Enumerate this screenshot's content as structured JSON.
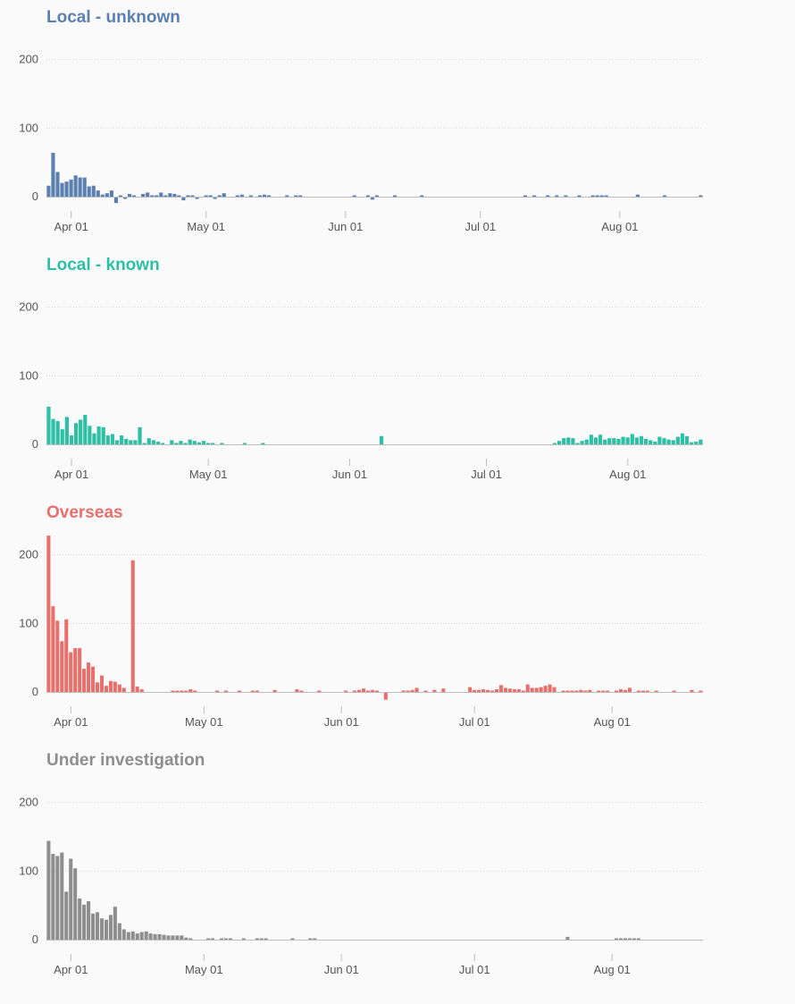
{
  "chart_data": [
    {
      "type": "bar",
      "title": "Local - unknown",
      "color": "#5b80b0",
      "x_start": "2020-03-27",
      "x_end": "2020-08-15",
      "ylim": [
        -10,
        200
      ],
      "yticks": [
        0,
        100,
        200
      ],
      "xticks": [
        {
          "date": "2020-04-01",
          "label": "Apr 01"
        },
        {
          "date": "2020-05-01",
          "label": "May 01"
        },
        {
          "date": "2020-06-01",
          "label": "Jun 01"
        },
        {
          "date": "2020-07-01",
          "label": "Jul 01"
        },
        {
          "date": "2020-08-01",
          "label": "Aug 01"
        }
      ],
      "grid": true,
      "values": [
        16,
        64,
        36,
        20,
        22,
        25,
        31,
        28,
        28,
        15,
        16,
        9,
        3,
        5,
        9,
        -8,
        1,
        -1,
        4,
        1,
        0,
        4,
        6,
        2,
        2,
        6,
        1,
        5,
        4,
        1,
        -4,
        2,
        1,
        -1,
        0,
        1,
        2,
        -1,
        2,
        5,
        0,
        0,
        1,
        3,
        0,
        1,
        0,
        1,
        3,
        1,
        0,
        0,
        0,
        2,
        0,
        1,
        1,
        0,
        0,
        0,
        0,
        0,
        0,
        0,
        0,
        0,
        0,
        0,
        1,
        0,
        0,
        2,
        -3,
        1,
        0,
        0,
        0,
        1,
        0,
        0,
        0,
        0,
        0,
        1,
        0,
        0,
        0,
        0,
        0,
        0,
        0,
        0,
        0,
        0,
        0,
        0,
        0,
        0,
        0,
        0,
        0,
        0,
        0,
        0,
        0,
        0,
        1,
        0,
        1,
        0,
        0,
        1,
        0,
        1,
        0,
        2,
        0,
        0,
        1,
        0,
        0,
        1,
        1,
        2,
        1,
        0,
        0,
        0,
        0,
        0,
        0,
        3,
        0,
        0,
        0,
        0,
        0,
        2,
        0,
        0,
        0,
        0,
        0,
        0,
        0,
        2
      ]
    },
    {
      "type": "bar",
      "title": "Local - known",
      "color": "#2fbfa4",
      "x_start": "2020-03-27",
      "x_end": "2020-08-15",
      "ylim": [
        -10,
        200
      ],
      "yticks": [
        0,
        100,
        200
      ],
      "xticks": [
        {
          "date": "2020-04-01",
          "label": "Apr 01"
        },
        {
          "date": "2020-05-01",
          "label": "May 01"
        },
        {
          "date": "2020-06-01",
          "label": "Jun 01"
        },
        {
          "date": "2020-07-01",
          "label": "Jul 01"
        },
        {
          "date": "2020-08-01",
          "label": "Aug 01"
        }
      ],
      "grid": true,
      "values": [
        55,
        37,
        34,
        22,
        40,
        13,
        31,
        36,
        43,
        27,
        16,
        26,
        25,
        13,
        15,
        6,
        13,
        8,
        6,
        6,
        25,
        1,
        9,
        6,
        4,
        1,
        0,
        6,
        2,
        5,
        2,
        7,
        5,
        3,
        5,
        1,
        2,
        0,
        2,
        0,
        0,
        0,
        0,
        1,
        0,
        0,
        0,
        1,
        0,
        0,
        0,
        0,
        0,
        0,
        0,
        0,
        0,
        0,
        0,
        0,
        0,
        0,
        0,
        0,
        0,
        0,
        0,
        0,
        0,
        0,
        0,
        0,
        0,
        12,
        0,
        0,
        0,
        0,
        0,
        0,
        0,
        0,
        0,
        0,
        0,
        0,
        0,
        0,
        0,
        0,
        0,
        0,
        0,
        0,
        0,
        0,
        0,
        0,
        0,
        0,
        0,
        0,
        0,
        0,
        0,
        0,
        0,
        0,
        0,
        0,
        0,
        2,
        5,
        9,
        10,
        9,
        2,
        5,
        7,
        14,
        10,
        14,
        7,
        9,
        9,
        8,
        11,
        10,
        15,
        10,
        12,
        8,
        6,
        4,
        11,
        9,
        7,
        6,
        11,
        16,
        12,
        3,
        4,
        7
      ]
    },
    {
      "type": "bar",
      "title": "Overseas",
      "color": "#e8706c",
      "x_start": "2020-03-27",
      "x_end": "2020-08-15",
      "ylim": [
        -10,
        200
      ],
      "yticks": [
        0,
        100,
        200
      ],
      "xticks": [
        {
          "date": "2020-04-01",
          "label": "Apr 01"
        },
        {
          "date": "2020-05-01",
          "label": "May 01"
        },
        {
          "date": "2020-06-01",
          "label": "Jun 01"
        },
        {
          "date": "2020-07-01",
          "label": "Jul 01"
        },
        {
          "date": "2020-08-01",
          "label": "Aug 01"
        }
      ],
      "grid": true,
      "values": [
        228,
        125,
        104,
        74,
        106,
        58,
        64,
        64,
        34,
        43,
        37,
        14,
        24,
        9,
        16,
        15,
        11,
        6,
        0,
        192,
        8,
        4,
        0,
        0,
        0,
        0,
        0,
        0,
        2,
        1,
        2,
        1,
        4,
        1,
        0,
        0,
        0,
        0,
        2,
        0,
        1,
        0,
        0,
        1,
        0,
        0,
        1,
        2,
        0,
        0,
        0,
        3,
        0,
        0,
        0,
        0,
        4,
        1,
        0,
        0,
        0,
        2,
        0,
        0,
        0,
        0,
        0,
        1,
        0,
        2,
        3,
        5,
        2,
        3,
        2,
        0,
        -10,
        0,
        0,
        0,
        2,
        2,
        3,
        6,
        0,
        1,
        0,
        3,
        0,
        5,
        0,
        0,
        0,
        0,
        0,
        7,
        3,
        3,
        4,
        3,
        2,
        4,
        10,
        6,
        5,
        4,
        4,
        2,
        11,
        6,
        6,
        7,
        9,
        11,
        7,
        0,
        2,
        1,
        2,
        1,
        3,
        2,
        3,
        0,
        1,
        1,
        1,
        0,
        2,
        4,
        3,
        6,
        0,
        1,
        1,
        2,
        0,
        1,
        0,
        0,
        0,
        1,
        0,
        0,
        0,
        3,
        0,
        2
      ]
    },
    {
      "type": "bar",
      "title": "Under investigation",
      "color": "#8e8e8e",
      "x_start": "2020-03-27",
      "x_end": "2020-08-15",
      "ylim": [
        -10,
        200
      ],
      "yticks": [
        0,
        100,
        200
      ],
      "xticks": [
        {
          "date": "2020-04-01",
          "label": "Apr 01"
        },
        {
          "date": "2020-05-01",
          "label": "May 01"
        },
        {
          "date": "2020-06-01",
          "label": "Jun 01"
        },
        {
          "date": "2020-07-01",
          "label": "Jul 01"
        },
        {
          "date": "2020-08-01",
          "label": "Aug 01"
        }
      ],
      "grid": true,
      "values": [
        144,
        125,
        122,
        127,
        70,
        118,
        104,
        60,
        51,
        56,
        38,
        40,
        31,
        29,
        36,
        48,
        24,
        15,
        11,
        12,
        9,
        11,
        12,
        9,
        8,
        8,
        7,
        6,
        6,
        6,
        6,
        3,
        1,
        0,
        0,
        0,
        1,
        1,
        0,
        1,
        1,
        1,
        0,
        0,
        1,
        0,
        0,
        1,
        1,
        1,
        0,
        0,
        0,
        0,
        0,
        1,
        0,
        0,
        0,
        1,
        1,
        0,
        0,
        0,
        0,
        0,
        0,
        0,
        0,
        0,
        0,
        0,
        0,
        0,
        0,
        0,
        0,
        0,
        0,
        0,
        0,
        0,
        0,
        0,
        0,
        0,
        0,
        0,
        0,
        0,
        0,
        0,
        0,
        0,
        0,
        0,
        0,
        0,
        0,
        0,
        0,
        0,
        0,
        0,
        0,
        0,
        0,
        0,
        0,
        0,
        0,
        0,
        0,
        0,
        0,
        0,
        0,
        4,
        0,
        0,
        0,
        0,
        0,
        0,
        0,
        0,
        0,
        0,
        1,
        1,
        2,
        1,
        2,
        1,
        0,
        0,
        0,
        0,
        0,
        0,
        0,
        0,
        0,
        0,
        0,
        0,
        0,
        0
      ]
    }
  ]
}
